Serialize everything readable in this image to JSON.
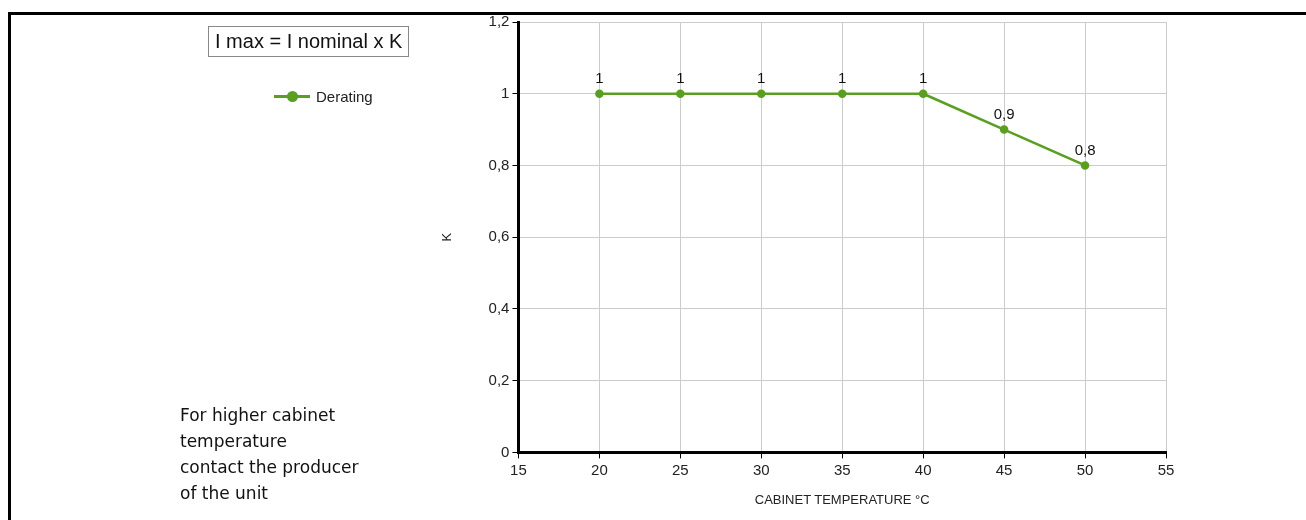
{
  "chart_data": {
    "type": "line",
    "xlabel": "CABINET TEMPERATURE °C",
    "ylabel": "K",
    "x": [
      20,
      25,
      30,
      35,
      40,
      45,
      50
    ],
    "series": [
      {
        "name": "Derating",
        "color": "#5a9e22",
        "values": [
          1,
          1,
          1,
          1,
          1,
          0.9,
          0.8
        ],
        "value_labels": [
          "1",
          "1",
          "1",
          "1",
          "1",
          "0,9",
          "0,8"
        ]
      }
    ],
    "xlim": [
      15,
      55
    ],
    "xticks": [
      15,
      20,
      25,
      30,
      35,
      40,
      45,
      50,
      55
    ],
    "ylim": [
      0,
      1.2
    ],
    "yticks": [
      0,
      {
        "value": 0.2,
        "label": "0,2"
      },
      {
        "value": 0.4,
        "label": "0,4"
      },
      {
        "value": 0.6,
        "label": "0,6"
      },
      {
        "value": 0.8,
        "label": "0,8"
      },
      1,
      {
        "value": 1.2,
        "label": "1,2"
      }
    ],
    "grid": true,
    "legend": "left",
    "marker": "circle",
    "line_style": "solid",
    "annotations": [
      "I max = I nominal x K",
      "For higher cabinet\ntemperature\ncontact the producer\nof the unit"
    ]
  }
}
